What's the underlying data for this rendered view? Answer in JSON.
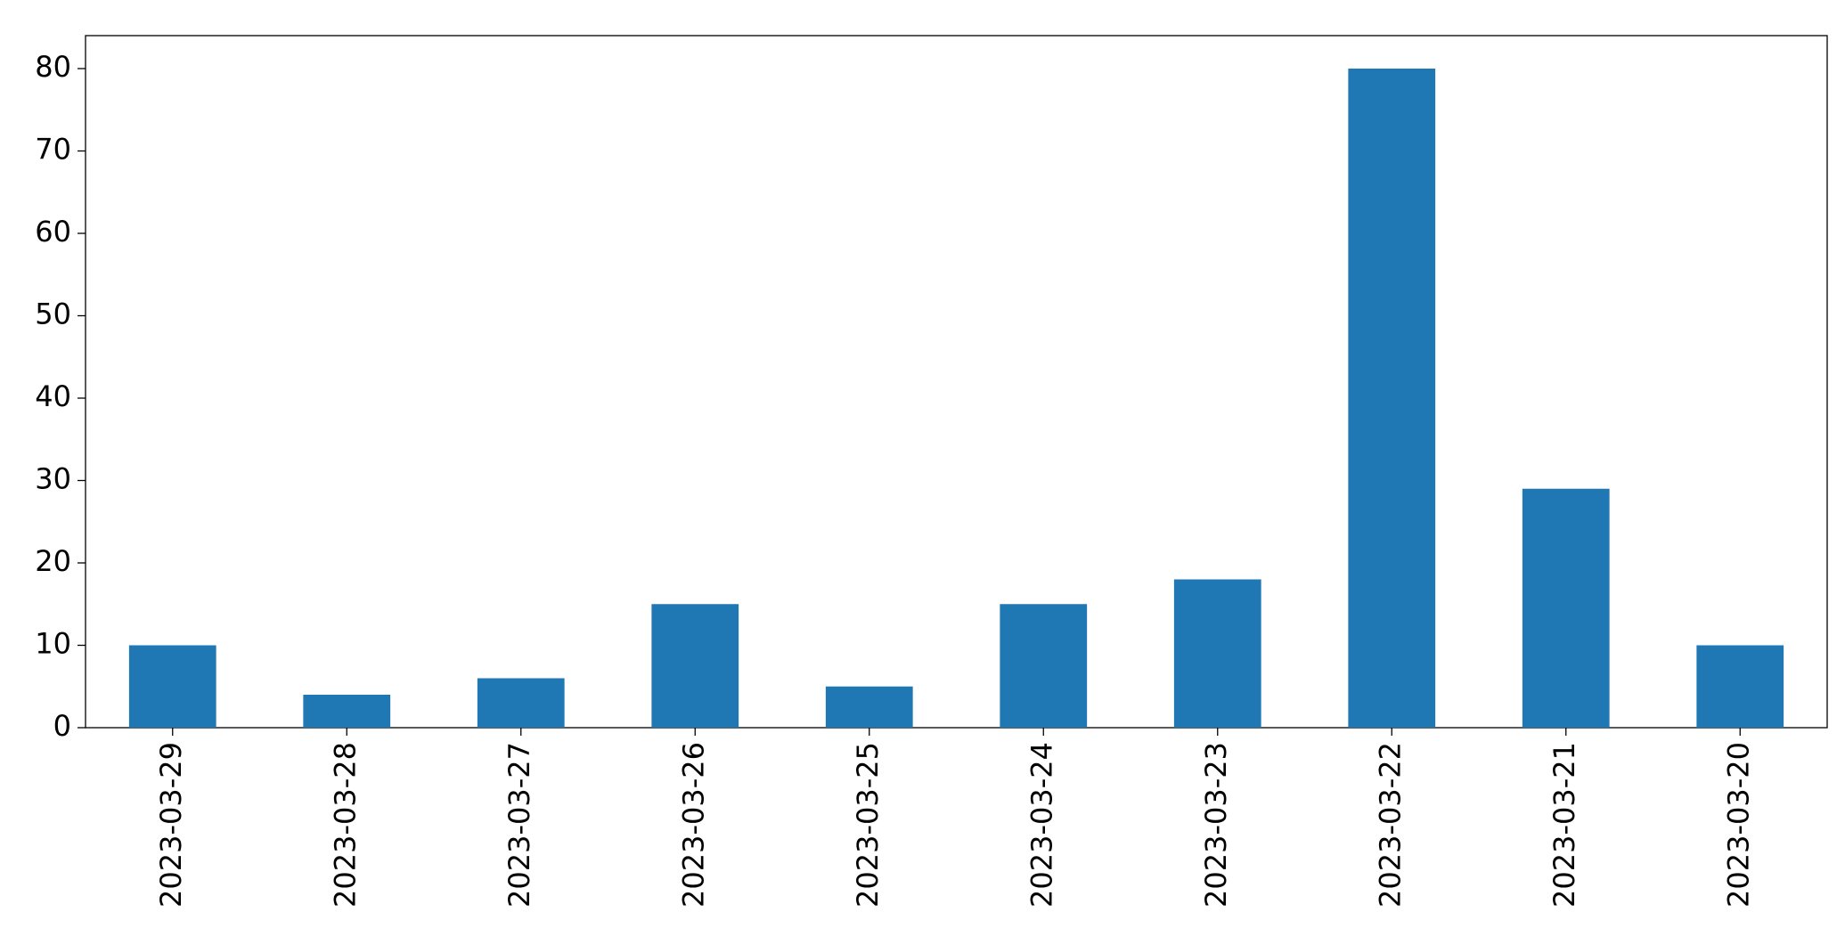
{
  "chart_data": {
    "type": "bar",
    "categories": [
      "2023-03-29",
      "2023-03-28",
      "2023-03-27",
      "2023-03-26",
      "2023-03-25",
      "2023-03-24",
      "2023-03-23",
      "2023-03-22",
      "2023-03-21",
      "2023-03-20"
    ],
    "values": [
      10,
      4,
      6,
      15,
      5,
      15,
      18,
      80,
      29,
      10
    ],
    "color": "#1f77b4",
    "ylim": [
      0,
      84
    ],
    "yticks": [
      0,
      10,
      20,
      30,
      40,
      50,
      60,
      70,
      80
    ],
    "grid": false
  }
}
